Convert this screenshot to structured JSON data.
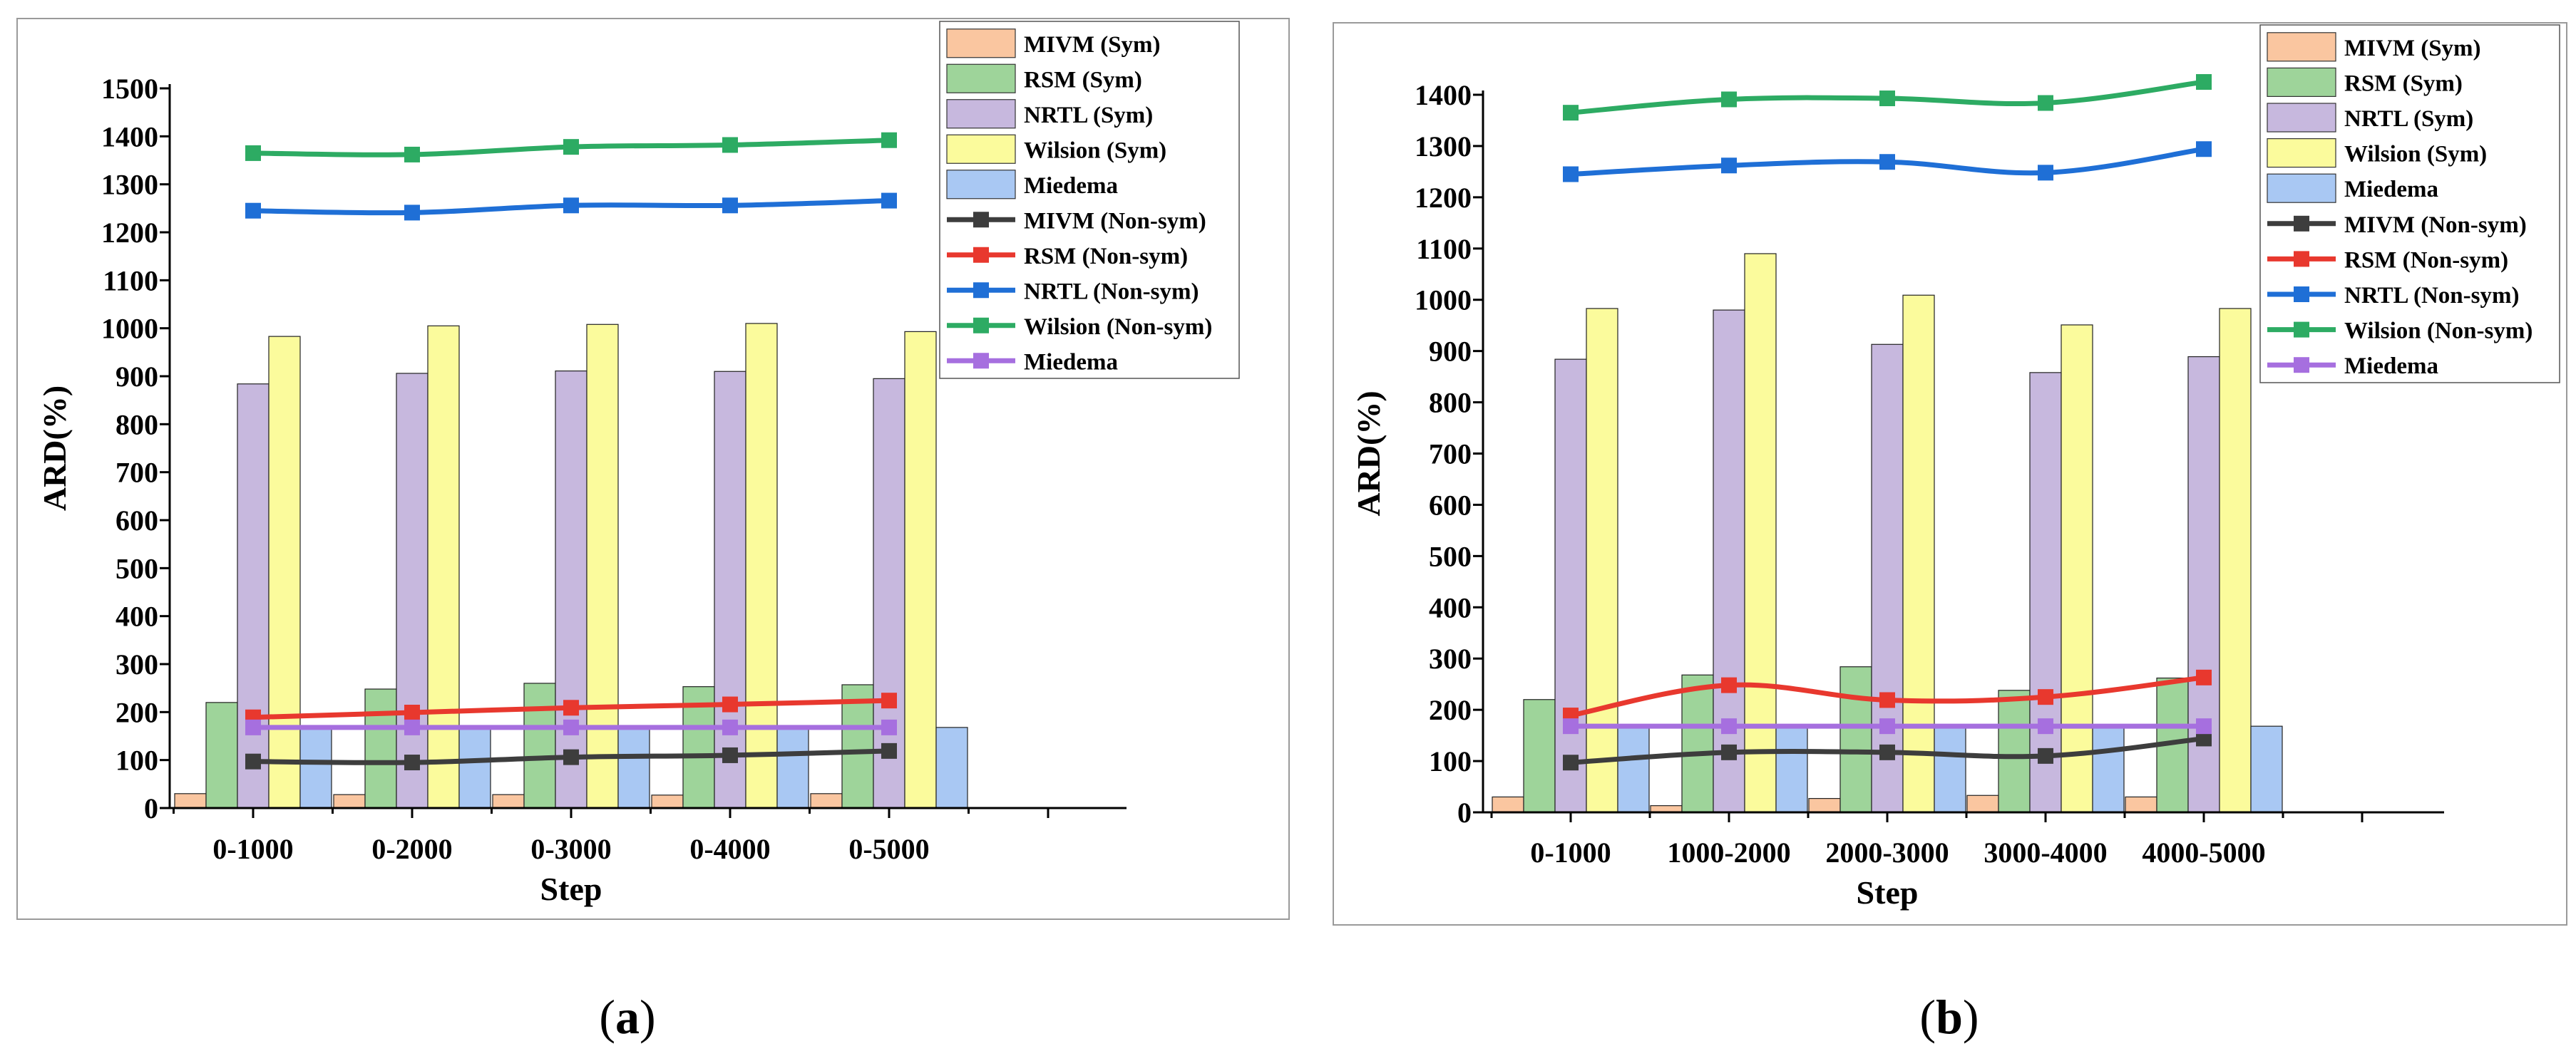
{
  "colors": {
    "bar_MIVM": "#FAC6A0",
    "bar_RSM": "#9ED49A",
    "bar_NRTL": "#C7B8DE",
    "bar_Wilson": "#FBFB9C",
    "bar_Miedema": "#A9C8F3",
    "line_MIVM": "#3d3d3d",
    "line_RSM": "#E8382E",
    "line_NRTL": "#1F6FD6",
    "line_Wilson": "#2DAB63",
    "line_Miedema": "#A66FDF"
  },
  "chart_data": [
    {
      "panel": "a",
      "type": "bar",
      "title": "",
      "panel_label": {
        "open": "(",
        "letter": "a",
        "close": ")"
      },
      "xlabel": "Step",
      "ylabel": "ARD(%)",
      "categories": [
        "0-1000",
        "0-2000",
        "0-3000",
        "0-4000",
        "0-5000"
      ],
      "ylim": [
        0,
        1500
      ],
      "yticks": [
        0,
        100,
        200,
        300,
        400,
        500,
        600,
        700,
        800,
        900,
        1000,
        1100,
        1200,
        1300,
        1400,
        1500
      ],
      "legend_position": "top-right",
      "bar_series": [
        {
          "name": "MIVM (Sym)",
          "key": "MIVM",
          "values": [
            30,
            28,
            28,
            27,
            30
          ]
        },
        {
          "name": "RSM (Sym)",
          "key": "RSM",
          "values": [
            220,
            248,
            260,
            253,
            257
          ]
        },
        {
          "name": "NRTL (Sym)",
          "key": "NRTL",
          "values": [
            884,
            906,
            911,
            910,
            895
          ]
        },
        {
          "name": "Wilsion (Sym)",
          "key": "Wilson",
          "values": [
            983,
            1005,
            1008,
            1010,
            993
          ]
        },
        {
          "name": "Miedema",
          "key": "Miedema",
          "values": [
            168,
            168,
            168,
            168,
            168
          ]
        }
      ],
      "line_series": [
        {
          "name": "MIVM (Non-sym)",
          "key": "MIVM",
          "values": [
            97,
            95,
            106,
            110,
            119
          ]
        },
        {
          "name": "RSM (Non-sym)",
          "key": "RSM",
          "values": [
            189,
            199,
            209,
            216,
            224
          ]
        },
        {
          "name": "NRTL (Non-sym)",
          "key": "NRTL",
          "values": [
            1245,
            1241,
            1256,
            1256,
            1266
          ]
        },
        {
          "name": "Wilsion (Non-sym)",
          "key": "Wilson",
          "values": [
            1365,
            1362,
            1378,
            1382,
            1392
          ]
        },
        {
          "name": "Miedema",
          "key": "Miedema",
          "values": [
            168,
            168,
            168,
            168,
            168
          ]
        }
      ]
    },
    {
      "panel": "b",
      "type": "bar",
      "title": "",
      "panel_label": {
        "open": "(",
        "letter": "b",
        "close": ")"
      },
      "xlabel": "Step",
      "ylabel": "ARD(%)",
      "categories": [
        "0-1000",
        "1000-2000",
        "2000-3000",
        "3000-4000",
        "4000-5000"
      ],
      "ylim": [
        0,
        1400
      ],
      "yticks": [
        0,
        100,
        200,
        300,
        400,
        500,
        600,
        700,
        800,
        900,
        1000,
        1100,
        1200,
        1300,
        1400
      ],
      "legend_position": "top-right",
      "bar_series": [
        {
          "name": "MIVM (Sym)",
          "key": "MIVM",
          "values": [
            30,
            13,
            27,
            33,
            30
          ]
        },
        {
          "name": "RSM (Sym)",
          "key": "RSM",
          "values": [
            220,
            268,
            284,
            238,
            262
          ]
        },
        {
          "name": "NRTL (Sym)",
          "key": "NRTL",
          "values": [
            884,
            980,
            913,
            858,
            889
          ]
        },
        {
          "name": "Wilsion (Sym)",
          "key": "Wilson",
          "values": [
            983,
            1090,
            1009,
            951,
            983
          ]
        },
        {
          "name": "Miedema",
          "key": "Miedema",
          "values": [
            168,
            168,
            168,
            168,
            168
          ]
        }
      ],
      "line_series": [
        {
          "name": "MIVM (Non-sym)",
          "key": "MIVM",
          "values": [
            97,
            117,
            117,
            110,
            144
          ]
        },
        {
          "name": "RSM (Non-sym)",
          "key": "RSM",
          "values": [
            189,
            248,
            219,
            225,
            263
          ]
        },
        {
          "name": "NRTL (Non-sym)",
          "key": "NRTL",
          "values": [
            1245,
            1262,
            1269,
            1248,
            1294
          ]
        },
        {
          "name": "Wilsion (Non-sym)",
          "key": "Wilson",
          "values": [
            1365,
            1391,
            1393,
            1384,
            1425
          ]
        },
        {
          "name": "Miedema",
          "key": "Miedema",
          "values": [
            168,
            168,
            168,
            168,
            168
          ]
        }
      ]
    }
  ]
}
